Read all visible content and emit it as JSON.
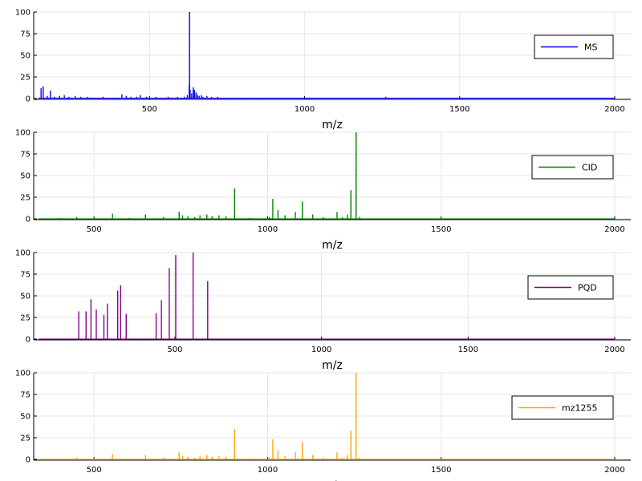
{
  "chart_data": [
    {
      "type": "line",
      "xlim": [
        142,
        2000
      ],
      "ylim": [
        0,
        100
      ],
      "xticks": [
        500,
        1000,
        1500,
        2000
      ],
      "yticks": [
        0,
        25,
        50,
        75,
        100
      ],
      "xlabel": "m/z",
      "ylabel": "",
      "grid": true,
      "legend_position": "top-right",
      "series": [
        {
          "name": "MS",
          "color": "#0000ff",
          "baseline": 0.5,
          "peaks": [
            [
              150,
              12
            ],
            [
              157,
              14
            ],
            [
              170,
              3
            ],
            [
              180,
              9
            ],
            [
              193,
              2
            ],
            [
              210,
              3
            ],
            [
              225,
              4
            ],
            [
              240,
              2
            ],
            [
              260,
              3
            ],
            [
              278,
              2
            ],
            [
              300,
              2
            ],
            [
              330,
              1
            ],
            [
              350,
              2
            ],
            [
              390,
              1
            ],
            [
              411,
              5
            ],
            [
              425,
              3
            ],
            [
              440,
              2
            ],
            [
              458,
              2
            ],
            [
              470,
              4
            ],
            [
              490,
              2
            ],
            [
              520,
              2
            ],
            [
              560,
              2
            ],
            [
              590,
              2
            ],
            [
              612,
              2
            ],
            [
              622,
              4
            ],
            [
              628,
              16
            ],
            [
              629,
              100
            ],
            [
              631,
              10
            ],
            [
              636,
              6
            ],
            [
              641,
              13
            ],
            [
              645,
              10
            ],
            [
              650,
              7
            ],
            [
              655,
              4
            ],
            [
              660,
              3
            ],
            [
              667,
              4
            ],
            [
              672,
              2
            ],
            [
              685,
              3
            ],
            [
              700,
              2
            ],
            [
              720,
              2
            ],
            [
              760,
              1
            ],
            [
              800,
              1
            ],
            [
              860,
              1
            ],
            [
              1000,
              1
            ],
            [
              1262,
              2
            ]
          ]
        },
        {
          "name": "CID",
          "color": "#008000",
          "baseline": 0,
          "peaks": [
            [
              400,
              1
            ],
            [
              450,
              2
            ],
            [
              500,
              1
            ],
            [
              553,
              6
            ],
            [
              600,
              1
            ],
            [
              648,
              5
            ],
            [
              700,
              2
            ],
            [
              745,
              8
            ],
            [
              755,
              4
            ],
            [
              770,
              3
            ],
            [
              790,
              2
            ],
            [
              805,
              4
            ],
            [
              825,
              5
            ],
            [
              840,
              3
            ],
            [
              860,
              4
            ],
            [
              880,
              3
            ],
            [
              905,
              35
            ],
            [
              950,
              1
            ],
            [
              1005,
              2
            ],
            [
              1015,
              23
            ],
            [
              1030,
              10
            ],
            [
              1050,
              4
            ],
            [
              1080,
              8
            ],
            [
              1100,
              20
            ],
            [
              1130,
              5
            ],
            [
              1160,
              2
            ],
            [
              1200,
              8
            ],
            [
              1215,
              2
            ],
            [
              1230,
              5
            ],
            [
              1240,
              33
            ],
            [
              1255,
              100
            ],
            [
              1265,
              2
            ]
          ]
        },
        {
          "name": "PQD",
          "color": "#800080",
          "baseline": 0,
          "peaks": [
            [
              172,
              32
            ],
            [
              197,
              32
            ],
            [
              214,
              46
            ],
            [
              232,
              34
            ],
            [
              258,
              28
            ],
            [
              270,
              41
            ],
            [
              305,
              56
            ],
            [
              315,
              62
            ],
            [
              334,
              29
            ],
            [
              436,
              30
            ],
            [
              454,
              45
            ],
            [
              481,
              82
            ],
            [
              503,
              97
            ],
            [
              562,
              100
            ],
            [
              612,
              67
            ]
          ]
        },
        {
          "name": "mz1255",
          "color": "#ffa500",
          "baseline": 0,
          "peaks": [
            [
              400,
              1
            ],
            [
              450,
              2
            ],
            [
              500,
              1
            ],
            [
              553,
              6
            ],
            [
              600,
              1
            ],
            [
              648,
              5
            ],
            [
              700,
              2
            ],
            [
              745,
              8
            ],
            [
              755,
              4
            ],
            [
              770,
              3
            ],
            [
              790,
              2
            ],
            [
              805,
              4
            ],
            [
              825,
              5
            ],
            [
              840,
              3
            ],
            [
              860,
              4
            ],
            [
              880,
              3
            ],
            [
              905,
              35
            ],
            [
              950,
              1
            ],
            [
              1005,
              2
            ],
            [
              1015,
              23
            ],
            [
              1030,
              10
            ],
            [
              1050,
              4
            ],
            [
              1080,
              8
            ],
            [
              1100,
              20
            ],
            [
              1130,
              5
            ],
            [
              1160,
              2
            ],
            [
              1200,
              8
            ],
            [
              1215,
              2
            ],
            [
              1230,
              5
            ],
            [
              1240,
              33
            ],
            [
              1255,
              100
            ],
            [
              1265,
              2
            ]
          ]
        }
      ]
    }
  ]
}
